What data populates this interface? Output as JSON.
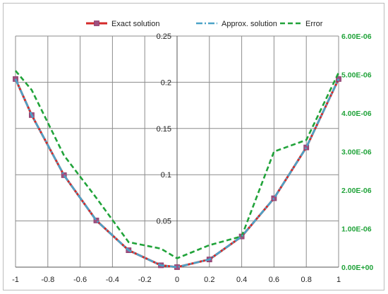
{
  "chart_data": {
    "type": "line",
    "title": "",
    "xlabel": "",
    "ylabel": "",
    "xlim": [
      -1,
      1
    ],
    "ylim_left": [
      0,
      0.25
    ],
    "ylim_right": [
      0,
      6e-06
    ],
    "x_ticks": [
      "-1",
      "-0.8",
      "-0.6",
      "-0.4",
      "-0.2",
      "0",
      "0.2",
      "0.4",
      "0.6",
      "0.8",
      "1"
    ],
    "y_left_ticks": [
      "0",
      "0.05",
      "0.1",
      "0.15",
      "0.2",
      "0.25"
    ],
    "y_right_ticks": [
      "0.00E+00",
      "1.00E-06",
      "2.00E-06",
      "3.00E-06",
      "4.00E-06",
      "5.00E-06",
      "6.00E-06"
    ],
    "grid": true,
    "legend_position": "top",
    "series": [
      {
        "name": "Exact solution",
        "axis": "left",
        "color": "#d42a2a",
        "style": "solid-with-square-markers",
        "x": [
          -1,
          -0.9,
          -0.7,
          -0.5,
          -0.3,
          -0.1,
          0,
          0.2,
          0.4,
          0.6,
          0.8,
          1
        ],
        "y": [
          0.2035,
          0.1645,
          0.0995,
          0.0505,
          0.0183,
          0.002,
          0,
          0.0083,
          0.0332,
          0.0745,
          0.1295,
          0.2035
        ]
      },
      {
        "name": "Approx. solution",
        "axis": "left",
        "color": "#4ba3c8",
        "style": "dash-dot",
        "x": [
          -1,
          -0.9,
          -0.7,
          -0.5,
          -0.3,
          -0.1,
          0,
          0.2,
          0.4,
          0.6,
          0.8,
          1
        ],
        "y": [
          0.2035,
          0.1645,
          0.0995,
          0.0505,
          0.0183,
          0.002,
          0,
          0.0083,
          0.0332,
          0.0745,
          0.1295,
          0.2035
        ]
      },
      {
        "name": "Error",
        "axis": "right",
        "color": "#21a33a",
        "style": "dashed",
        "x": [
          -1,
          -0.9,
          -0.7,
          -0.5,
          -0.3,
          -0.1,
          0,
          0.2,
          0.4,
          0.6,
          0.8,
          1
        ],
        "y": [
          5.1e-06,
          4.6e-06,
          2.9e-06,
          1.8e-06,
          6.5e-07,
          4.8e-07,
          2.3e-07,
          5.7e-07,
          8e-07,
          3e-06,
          3.3e-06,
          5.05e-06
        ]
      }
    ]
  }
}
